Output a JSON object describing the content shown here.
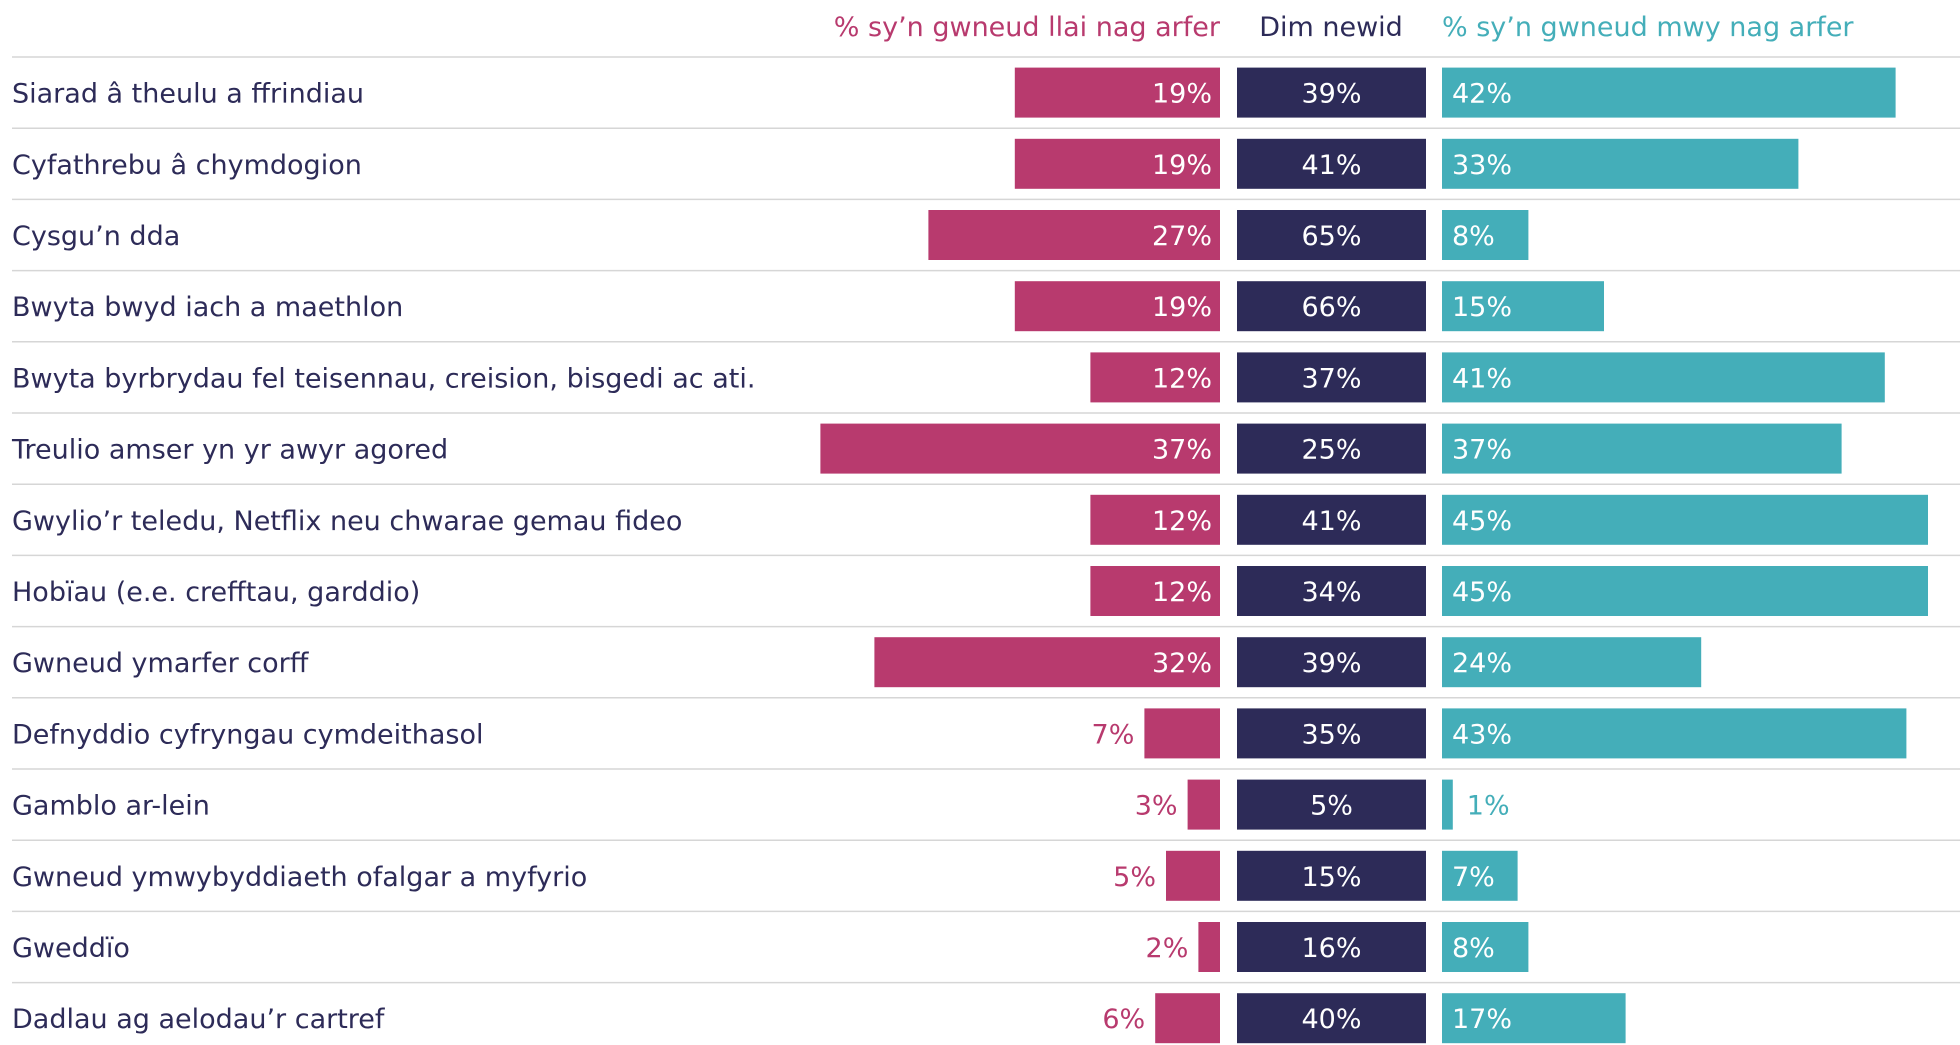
{
  "chart_data": {
    "type": "bar",
    "stacked": false,
    "value_unit": "%",
    "headers": {
      "less": "% sy’n gwneud llai nag arfer",
      "none": "Dim newid",
      "more": "% sy’n gwneud mwy nag arfer"
    },
    "colors": {
      "less": "#b83a6e",
      "none": "#2d2b58",
      "more": "#44aeb9",
      "rule": "#d6d6d6",
      "label": "#2d2b58"
    },
    "categories": [
      "Siarad â theulu a ffrindiau",
      "Cyfathrebu â chymdogion",
      "Cysgu’n dda",
      "Bwyta bwyd iach a maethlon",
      "Bwyta byrbrydau fel teisennau, creision, bisgedi ac ati.",
      "Treulio amser yn yr awyr agored",
      "Gwylio’r teledu, Netflix neu chwarae gemau fideo",
      "Hobïau (e.e. crefftau, garddio)",
      "Gwneud ymarfer corff",
      "Defnyddio cyfryngau cymdeithasol",
      "Gamblo ar-lein",
      "Gwneud ymwybyddiaeth ofalgar a myfyrio",
      "Gweddïo",
      "Dadlau ag aelodau’r cartref"
    ],
    "series": [
      {
        "name": "% sy’n gwneud llai nag arfer",
        "key": "less",
        "values": [
          19,
          19,
          27,
          19,
          12,
          37,
          12,
          12,
          32,
          7,
          3,
          5,
          2,
          6
        ]
      },
      {
        "name": "Dim newid",
        "key": "none",
        "values": [
          39,
          41,
          65,
          66,
          37,
          25,
          41,
          34,
          39,
          35,
          5,
          15,
          16,
          40
        ]
      },
      {
        "name": "% sy’n gwneud mwy nag arfer",
        "key": "more",
        "values": [
          42,
          33,
          8,
          15,
          41,
          37,
          45,
          45,
          24,
          43,
          1,
          7,
          8,
          17
        ]
      }
    ],
    "labels": {
      "less": [
        "19%",
        "19%",
        "27%",
        "19%",
        "12%",
        "37%",
        "12%",
        "12%",
        "32%",
        "7%",
        "3%",
        "5%",
        "2%",
        "6%"
      ],
      "none": [
        "39%",
        "41%",
        "65%",
        "66%",
        "37%",
        "25%",
        "41%",
        "34%",
        "39%",
        "35%",
        "5%",
        "15%",
        "16%",
        "40%"
      ],
      "more": [
        "42%",
        "33%",
        "8%",
        "15%",
        "41%",
        "37%",
        "45%",
        "45%",
        "24%",
        "43%",
        "1%",
        "7%",
        "8%",
        "17%"
      ]
    }
  }
}
